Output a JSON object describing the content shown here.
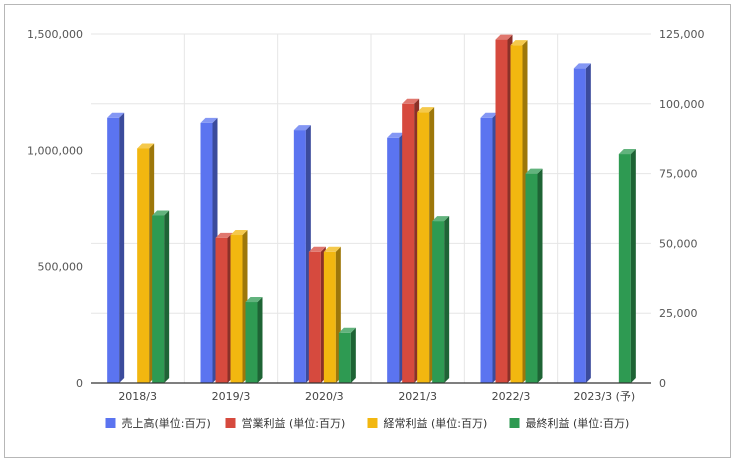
{
  "chart_data": {
    "type": "bar",
    "style": "3d-clustered",
    "categories": [
      "2018/3",
      "2019/3",
      "2020/3",
      "2021/3",
      "2022/3",
      "2023/3 (予)"
    ],
    "series": [
      {
        "name": "売上高(単位:百万)",
        "axis": "left",
        "color": "#5b74f0",
        "values": [
          1140000,
          1118000,
          1087000,
          1054000,
          1140000,
          1352000
        ]
      },
      {
        "name": "営業利益 (単位:百万)",
        "axis": "right",
        "color": "#d64a3e",
        "values": [
          null,
          52000,
          47000,
          100000,
          123000,
          null
        ]
      },
      {
        "name": "経常利益 (単位:百万)",
        "axis": "right",
        "color": "#f2b710",
        "values": [
          84000,
          53000,
          47000,
          97000,
          121000,
          null
        ]
      },
      {
        "name": "最終利益 (単位:百万)",
        "axis": "right",
        "color": "#2e9a52",
        "values": [
          60000,
          29000,
          18000,
          58000,
          75000,
          82000
        ]
      }
    ],
    "y_left": {
      "min": 0,
      "max": 1500000,
      "ticks": [
        "0",
        "500,000",
        "1,000,000",
        "1,500,000"
      ]
    },
    "y_right": {
      "min": 0,
      "max": 125000,
      "ticks": [
        "0",
        "25,000",
        "50,000",
        "75,000",
        "100,000",
        "125,000"
      ]
    },
    "grid": true,
    "legend_position": "bottom"
  }
}
